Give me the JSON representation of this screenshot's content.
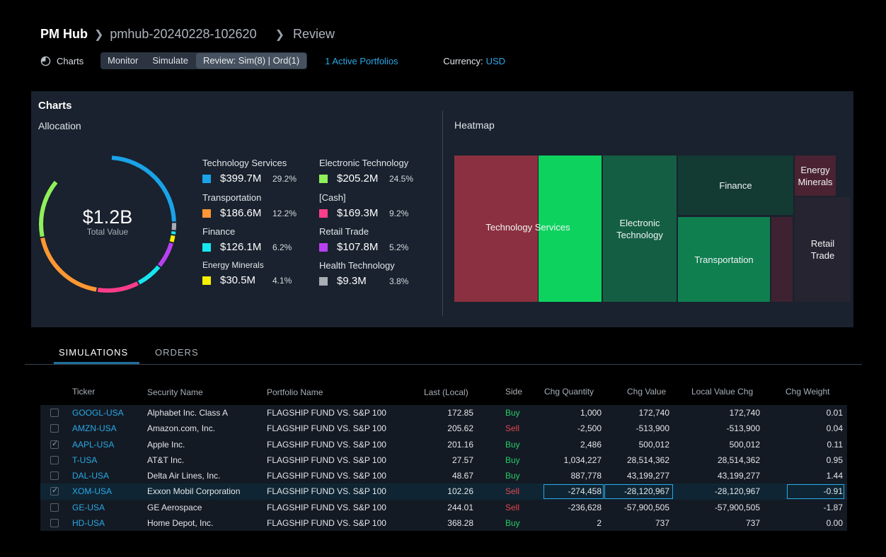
{
  "breadcrumb": {
    "app": "PM Hub",
    "simulation": "pmhub-20240228-102620",
    "page": "Review"
  },
  "toolbar": {
    "charts_label": "Charts",
    "segments": [
      "Monitor",
      "Simulate",
      "Review: Sim(8) | Ord(1)"
    ],
    "active_segment": "Review: Sim(8) | Ord(1)",
    "active_portfolios": "1 Active Portfolios",
    "currency_label": "Currency:",
    "currency_value": "USD"
  },
  "charts_panel": {
    "title": "Charts",
    "allocation_title": "Allocation",
    "heatmap_title": "Heatmap",
    "total_value": "$1.2B",
    "total_label": "Total Value",
    "legend": [
      {
        "name": "Technology Services",
        "value": "$399.7M",
        "pct": "29.2%",
        "color": "#1aa3e8"
      },
      {
        "name": "Electronic Technology",
        "value": "$205.2M",
        "pct": "24.5%",
        "color": "#8ff05a"
      },
      {
        "name": "Transportation",
        "value": "$186.6M",
        "pct": "12.2%",
        "color": "#ff9733"
      },
      {
        "name": "[Cash]",
        "value": "$169.3M",
        "pct": "9.2%",
        "color": "#ff3d8a"
      },
      {
        "name": "Finance",
        "value": "$126.1M",
        "pct": "6.2%",
        "color": "#17e6f0"
      },
      {
        "name": "Retail Trade",
        "value": "$107.8M",
        "pct": "5.2%",
        "color": "#b940f0"
      },
      {
        "name": "Energy Minerals",
        "value": "$30.5M",
        "pct": "4.1%",
        "color": "#f5f000"
      },
      {
        "name": "Health Technology",
        "value": "$9.3M",
        "pct": "3.8%",
        "color": "#a9aeb4"
      }
    ],
    "heatmap": {
      "technology_services": "Technology Services",
      "electronic_technology": "Electronic Technology",
      "finance": "Finance",
      "energy_minerals": "Energy Minerals",
      "transportation": "Transportation",
      "retail_trade": "Retail Trade"
    }
  },
  "tabs": [
    "SIMULATIONS",
    "ORDERS"
  ],
  "table": {
    "headers": [
      "Ticker",
      "Security Name",
      "Portfolio Name",
      "Last (Local)",
      "Side",
      "Chg Quantity",
      "Chg Value",
      "Local Value Chg",
      "Chg Weight"
    ],
    "rows": [
      {
        "checked": false,
        "ticker": "GOOGL-USA",
        "security": "Alphabet Inc. Class A",
        "portfolio": "FLAGSHIP FUND VS. S&P 100",
        "last": "172.85",
        "side": "Buy",
        "qty": "1,000",
        "value": "172,740",
        "local": "172,740",
        "weight": "0.01"
      },
      {
        "checked": false,
        "ticker": "AMZN-USA",
        "security": "Amazon.com, Inc.",
        "portfolio": "FLAGSHIP FUND VS. S&P 100",
        "last": "205.62",
        "side": "Sell",
        "qty": "-2,500",
        "value": "-513,900",
        "local": "-513,900",
        "weight": "0.04"
      },
      {
        "checked": true,
        "ticker": "AAPL-USA",
        "security": "Apple Inc.",
        "portfolio": "FLAGSHIP FUND VS. S&P 100",
        "last": "201.16",
        "side": "Buy",
        "qty": "2,486",
        "value": "500,012",
        "local": "500,012",
        "weight": "0.11"
      },
      {
        "checked": false,
        "ticker": "T-USA",
        "security": "AT&T Inc.",
        "portfolio": "FLAGSHIP FUND VS. S&P 100",
        "last": "27.57",
        "side": "Buy",
        "qty": "1,034,227",
        "value": "28,514,362",
        "local": "28,514,362",
        "weight": "0.95"
      },
      {
        "checked": false,
        "ticker": "DAL-USA",
        "security": "Delta Air Lines, Inc.",
        "portfolio": "FLAGSHIP FUND VS. S&P 100",
        "last": "48.67",
        "side": "Buy",
        "qty": "887,778",
        "value": "43,199,277",
        "local": "43,199,277",
        "weight": "1.44"
      },
      {
        "checked": true,
        "ticker": "XOM-USA",
        "security": "Exxon Mobil Corporation",
        "portfolio": "FLAGSHIP FUND VS. S&P 100",
        "last": "102.26",
        "side": "Sell",
        "qty": "-274,458",
        "value": "-28,120,967",
        "local": "-28,120,967",
        "weight": "-0.91"
      },
      {
        "checked": false,
        "ticker": "GE-USA",
        "security": "GE Aerospace",
        "portfolio": "FLAGSHIP FUND VS. S&P 100",
        "last": "244.01",
        "side": "Sell",
        "qty": "-236,628",
        "value": "-57,900,505",
        "local": "-57,900,505",
        "weight": "-1.87"
      },
      {
        "checked": false,
        "ticker": "HD-USA",
        "security": "Home Depot, Inc.",
        "portfolio": "FLAGSHIP FUND VS. S&P 100",
        "last": "368.28",
        "side": "Buy",
        "qty": "2",
        "value": "737",
        "local": "737",
        "weight": "0.00"
      }
    ]
  }
}
